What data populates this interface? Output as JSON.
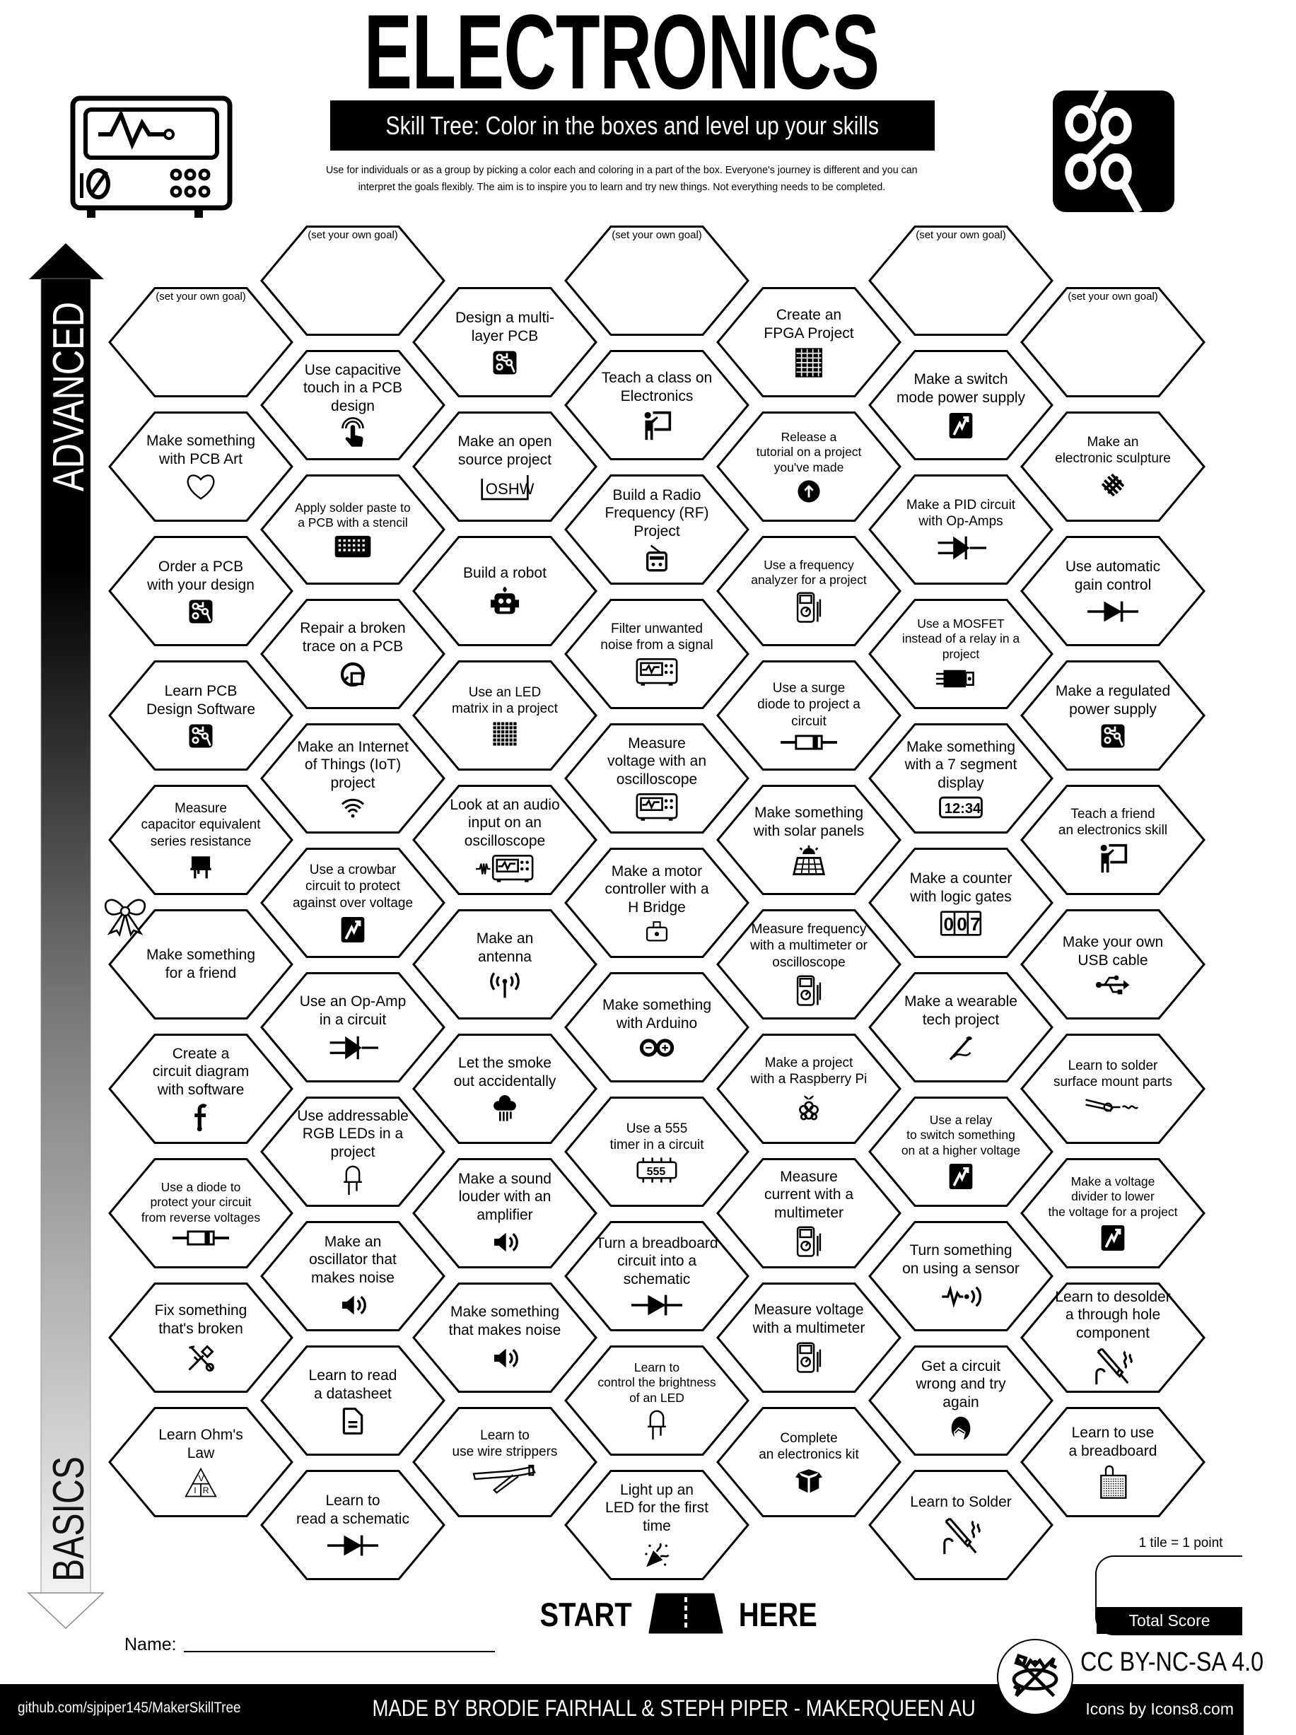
{
  "header": {
    "title": "ELECTRONICS",
    "subtitle": "Skill Tree:  Color in the boxes and level up your skills",
    "description": [
      "Use for individuals or as a group by picking a color each and coloring in a part of the box.  Everyone's journey is different and you can",
      "interpret the goals flexibly.  The aim is to inspire you to learn and try new things. Not everything needs to be completed."
    ],
    "left_icon": "oscilloscope-icon",
    "right_icon": "circuit-icon"
  },
  "progression": {
    "top_label": "ADVANCED",
    "bottom_label": "BASICS"
  },
  "grid": {
    "columns": [
      {
        "tiles": [
          {
            "label": "(set your own goal)",
            "custom": true
          },
          {
            "label": "Make something\nwith PCB Art",
            "icon": "heart"
          },
          {
            "label": "Order a PCB\nwith your design",
            "icon": "pcb"
          },
          {
            "label": "Learn PCB\nDesign Software",
            "icon": "pcb"
          },
          {
            "label": "Measure\ncapacitor equivalent\nseries resistance",
            "icon": "capacitor"
          },
          {
            "label": "Make something\nfor a friend",
            "icon": "bow"
          },
          {
            "label": "Create a\ncircuit diagram\nwith software",
            "icon": "function"
          },
          {
            "label": "Use a diode to\nprotect your circuit\nfrom reverse voltages",
            "icon": "diode-body"
          },
          {
            "label": "Fix something\nthat's broken",
            "icon": "tools"
          },
          {
            "label": "Learn Ohm's\nLaw",
            "icon": "ohm-triangle",
            "icon_text": [
              "V",
              "I",
              "R"
            ]
          }
        ]
      },
      {
        "tiles": [
          {
            "label": "(set your own goal)",
            "custom": true
          },
          {
            "label": "Use capacitive\ntouch in a PCB\ndesign",
            "icon": "touch"
          },
          {
            "label": "Apply solder paste to\na PCB with a stencil",
            "icon": "stencil"
          },
          {
            "label": "Repair a broken\ntrace on a PCB",
            "icon": "repair"
          },
          {
            "label": "Make an Internet\nof Things (IoT)\nproject",
            "icon": "wifi"
          },
          {
            "label": "Use a crowbar\ncircuit to protect\nagainst over voltage",
            "icon": "lightning"
          },
          {
            "label": "Use an Op-Amp\nin a circuit",
            "icon": "opamp"
          },
          {
            "label": "Use addressable\nRGB LEDs in a\nproject",
            "icon": "led"
          },
          {
            "label": "Make an\noscillator that\nmakes noise",
            "icon": "speaker"
          },
          {
            "label": "Learn to read\na datasheet",
            "icon": "document"
          },
          {
            "label": "Learn to\nread a schematic",
            "icon": "diode"
          }
        ]
      },
      {
        "tiles": [
          {
            "label": "Design a multi-\nlayer PCB",
            "icon": "pcb"
          },
          {
            "label": "Make an open\nsource project",
            "icon": "oshw",
            "icon_text": [
              "OSHW"
            ]
          },
          {
            "label": "Build a robot",
            "icon": "robot"
          },
          {
            "label": "Use an LED\nmatrix in a project",
            "icon": "led-matrix"
          },
          {
            "label": "Look at an audio\ninput on an\noscilloscope",
            "icon": "audio-scope"
          },
          {
            "label": "Make an\nantenna",
            "icon": "antenna"
          },
          {
            "label": "Let the smoke\nout accidentally",
            "icon": "smoke"
          },
          {
            "label": "Make a sound\nlouder with an\namplifier",
            "icon": "speaker"
          },
          {
            "label": "Make something\nthat makes noise",
            "icon": "speaker"
          },
          {
            "label": "Learn to\nuse wire strippers",
            "icon": "wire-stripper"
          }
        ]
      },
      {
        "tiles": [
          {
            "label": "(set your own goal)",
            "custom": true
          },
          {
            "label": "Teach a class on\nElectronics",
            "icon": "teach"
          },
          {
            "label": "Build a Radio\nFrequency (RF)\nProject",
            "icon": "radio"
          },
          {
            "label": "Filter unwanted\nnoise from a signal",
            "icon": "oscilloscope"
          },
          {
            "label": "Measure\nvoltage with an\noscilloscope",
            "icon": "oscilloscope"
          },
          {
            "label": "Make a motor\ncontroller with a\nH Bridge",
            "icon": "motor"
          },
          {
            "label": "Make something\nwith Arduino",
            "icon": "arduino"
          },
          {
            "label": "Use a 555\ntimer in a circuit",
            "icon": "chip",
            "icon_text": [
              "555"
            ]
          },
          {
            "label": "Turn a breadboard\ncircuit into a\nschematic",
            "icon": "diode"
          },
          {
            "label": "Learn to\ncontrol the brightness\nof an LED",
            "icon": "led"
          },
          {
            "label": "Light up an\nLED for the first\ntime",
            "icon": "party"
          }
        ]
      },
      {
        "tiles": [
          {
            "label": "Create an\nFPGA Project",
            "icon": "fpga"
          },
          {
            "label": "Release a\ntutorial on a project\nyou've made",
            "icon": "upload"
          },
          {
            "label": "Use a frequency\nanalyzer for a project",
            "icon": "multimeter"
          },
          {
            "label": "Use a surge\ndiode to project a\ncircuit",
            "icon": "diode-body"
          },
          {
            "label": "Make something\nwith solar panels",
            "icon": "solar"
          },
          {
            "label": "Measure frequency\nwith a multimeter or\noscilloscope",
            "icon": "multimeter"
          },
          {
            "label": "Make a project\nwith a Raspberry Pi",
            "icon": "raspberry"
          },
          {
            "label": "Measure\ncurrent with a\nmultimeter",
            "icon": "multimeter"
          },
          {
            "label": "Measure voltage\nwith a multimeter",
            "icon": "multimeter"
          },
          {
            "label": "Complete\nan electronics kit",
            "icon": "box"
          }
        ]
      },
      {
        "tiles": [
          {
            "label": "(set your own goal)",
            "custom": true
          },
          {
            "label": "Make a switch\nmode power supply",
            "icon": "lightning"
          },
          {
            "label": "Make a PID circuit\nwith Op-Amps",
            "icon": "opamp"
          },
          {
            "label": "Use a MOSFET\ninstead of a relay in a\nproject",
            "icon": "mosfet"
          },
          {
            "label": "Make something\nwith a 7 segment\ndisplay",
            "icon": "seven-segment",
            "icon_text": [
              "12:34"
            ]
          },
          {
            "label": "Make a counter\nwith logic gates",
            "icon": "counter",
            "icon_text": [
              "0",
              "0",
              "7"
            ]
          },
          {
            "label": "Make a wearable\ntech project",
            "icon": "needle"
          },
          {
            "label": "Use a relay\nto switch something\non at a higher voltage",
            "icon": "lightning"
          },
          {
            "label": "Turn something\non using a sensor",
            "icon": "sensor"
          },
          {
            "label": "Get a circuit\nwrong and try\nagain",
            "icon": "facepalm"
          },
          {
            "label": "Learn to Solder",
            "icon": "soldering-iron"
          }
        ]
      },
      {
        "tiles": [
          {
            "label": "(set your own goal)",
            "custom": true
          },
          {
            "label": "Make an\nelectronic sculpture",
            "icon": "sculpture"
          },
          {
            "label": "Use automatic\ngain control",
            "icon": "diode"
          },
          {
            "label": "Make a regulated\npower supply",
            "icon": "pcb"
          },
          {
            "label": "Teach a friend\nan electronics skill",
            "icon": "teach"
          },
          {
            "label": "Make your own\nUSB cable",
            "icon": "usb"
          },
          {
            "label": "Learn to solder\nsurface mount parts",
            "icon": "smd-solder"
          },
          {
            "label": "Make a voltage\ndivider to lower\nthe voltage for a project",
            "icon": "lightning"
          },
          {
            "label": "Learn to desolder\na through hole\ncomponent",
            "icon": "soldering-iron"
          },
          {
            "label": "Learn to use\na breadboard",
            "icon": "breadboard"
          }
        ]
      }
    ]
  },
  "start": {
    "start": "START",
    "here": "HERE",
    "icon": "road"
  },
  "name_field": {
    "label": "Name:",
    "value": ""
  },
  "score": {
    "rule": "1 tile = 1 point",
    "label": "Total Score",
    "value": ""
  },
  "license": "CC BY-NC-SA 4.0",
  "footer": {
    "github": "github.com/sjpiper145/MakerSkillTree",
    "credits": "MADE BY BRODIE FAIRHALL & STEPH PIPER  -  MAKERQUEEN AU",
    "icons_credit": "Icons by Icons8.com",
    "logo_icon": "makerqueen-tools-icon"
  },
  "colors": {
    "ink": "#000000",
    "paper": "#ffffff",
    "basics_gray": "#c8c8c8"
  }
}
